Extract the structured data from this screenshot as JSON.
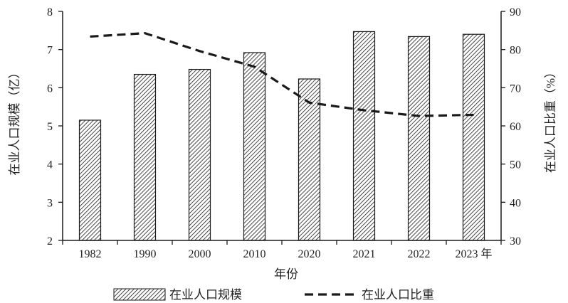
{
  "chart_data": {
    "type": "bar+line",
    "categories": [
      "1982",
      "1990",
      "2000",
      "2010",
      "2020",
      "2021",
      "2022",
      "2023 年"
    ],
    "series": [
      {
        "name": "在业人口规模",
        "type": "bar",
        "axis": "left",
        "pattern": "diagonal-hatch",
        "values": [
          5.15,
          6.35,
          6.48,
          6.92,
          6.23,
          7.47,
          7.34,
          7.4
        ]
      },
      {
        "name": "在业人口比重",
        "type": "line",
        "axis": "right",
        "style": "dashed",
        "values": [
          83.4,
          84.3,
          79.6,
          75.5,
          66.1,
          64.1,
          62.6,
          62.9
        ]
      }
    ],
    "xlabel": "年份",
    "ylabel_left": "在业人口规模（亿）",
    "ylabel_right": "在业人口比重（%）",
    "ylim_left": [
      2,
      8
    ],
    "ylim_right": [
      30,
      90
    ],
    "yticks_left": [
      "2",
      "3",
      "4",
      "5",
      "6",
      "7",
      "8"
    ],
    "yticks_right": [
      "30",
      "40",
      "50",
      "60",
      "70",
      "80",
      "90"
    ],
    "grid": false,
    "legend_position": "bottom",
    "colors": {
      "ink": "#1a1a1a",
      "bar_fill": "#ffffff"
    }
  }
}
